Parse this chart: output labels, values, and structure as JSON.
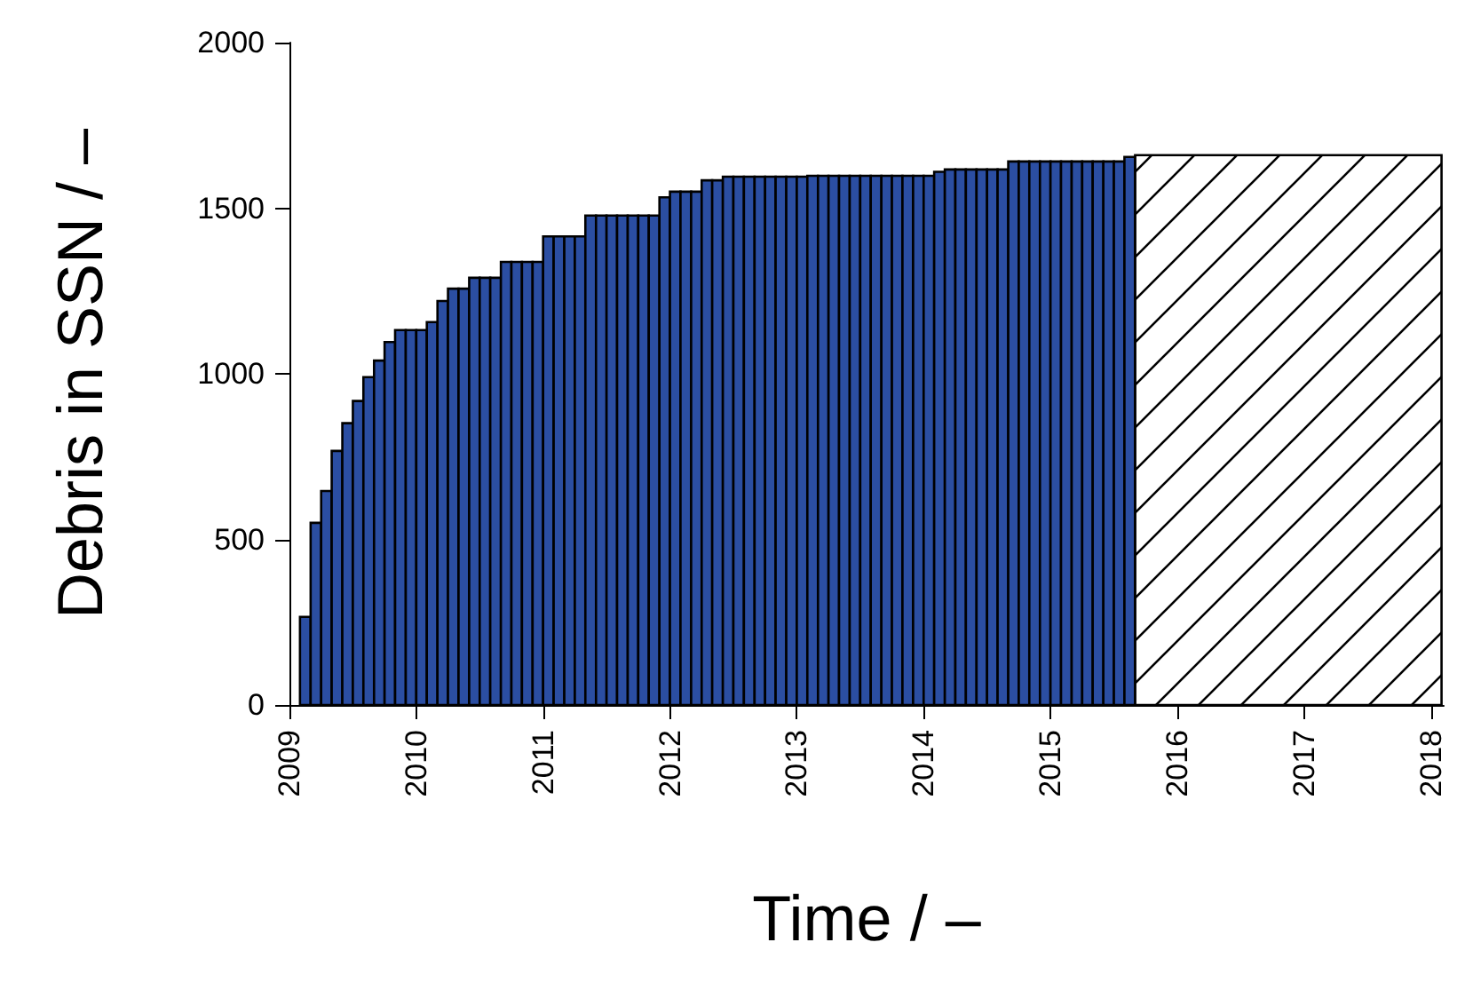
{
  "chart_data": {
    "type": "histogram",
    "xlabel": "Time / –",
    "ylabel": "Debris in SSN / –",
    "xlim": [
      2009,
      2018.1
    ],
    "xticks": [
      2009,
      2010,
      2011,
      2012,
      2013,
      2014,
      2015,
      2016,
      2017,
      2018
    ],
    "ylim": [
      0,
      2000
    ],
    "yticks": [
      0,
      500,
      1000,
      1500,
      2000
    ],
    "bins": [
      2009.083,
      2009.167,
      2009.25,
      2009.333,
      2009.417,
      2009.5,
      2009.583,
      2009.667,
      2009.75,
      2009.833,
      2009.917,
      2010,
      2010.083,
      2010.167,
      2010.25,
      2010.333,
      2010.417,
      2010.5,
      2010.583,
      2010.667,
      2010.75,
      2010.833,
      2010.917,
      2011,
      2011.083,
      2011.167,
      2011.25,
      2011.333,
      2011.417,
      2011.5,
      2011.583,
      2011.667,
      2011.75,
      2011.833,
      2011.917,
      2012,
      2012.083,
      2012.167,
      2012.25,
      2012.333,
      2012.417,
      2012.5,
      2012.583,
      2012.667,
      2012.75,
      2012.833,
      2012.917,
      2013,
      2013.083,
      2013.167,
      2013.25,
      2013.333,
      2013.417,
      2013.5,
      2013.583,
      2013.667,
      2013.75,
      2013.833,
      2013.917,
      2014,
      2014.083,
      2014.167,
      2014.25,
      2014.333,
      2014.417,
      2014.5,
      2014.583,
      2014.667,
      2014.75,
      2014.833,
      2014.917,
      2015,
      2015.083,
      2015.167,
      2015.25,
      2015.333,
      2015.417,
      2015.5,
      2015.583,
      2015.667,
      2018.083
    ],
    "values": [
      266,
      550,
      646,
      767,
      851,
      918,
      990,
      1040,
      1096,
      1132,
      1132,
      1132,
      1156,
      1220,
      1257,
      1257,
      1290,
      1290,
      1290,
      1338,
      1338,
      1338,
      1338,
      1415,
      1415,
      1415,
      1415,
      1478,
      1478,
      1478,
      1478,
      1478,
      1478,
      1478,
      1533,
      1550,
      1550,
      1550,
      1584,
      1584,
      1595,
      1595,
      1595,
      1595,
      1595,
      1595,
      1595,
      1595,
      1598,
      1598,
      1598,
      1598,
      1598,
      1598,
      1598,
      1598,
      1598,
      1598,
      1598,
      1598,
      1610,
      1617,
      1617,
      1617,
      1617,
      1617,
      1617,
      1641,
      1641,
      1641,
      1641,
      1641,
      1641,
      1641,
      1641,
      1641,
      1641,
      1641,
      1655,
      1660
    ],
    "colors": [
      "#2b4ea2",
      "#2b4ea2",
      "#2b4ea2",
      "#2b4ea2",
      "#2b4ea2",
      "#2b4ea2",
      "#2b4ea2",
      "#2b4ea2",
      "#2b4ea2",
      "#2b4ea2",
      "#2b4ea2",
      "#2b4ea2",
      "#2b4ea2",
      "#2b4ea2",
      "#2b4ea2",
      "#2b4ea2",
      "#2b4ea2",
      "#2b4ea2",
      "#2b4ea2",
      "#2b4ea2",
      "#2b4ea2",
      "#2b4ea2",
      "#2b4ea2",
      "#2b4ea2",
      "#2b4ea2",
      "#2b4ea2",
      "#2b4ea2",
      "#2b4ea2",
      "#2b4ea2",
      "#2b4ea2",
      "#2b4ea2",
      "#2b4ea2",
      "#2b4ea2",
      "#2b4ea2",
      "#2b4ea2",
      "#2b4ea2",
      "#2b4ea2",
      "#2b4ea2",
      "#2b4ea2",
      "#2b4ea2",
      "#2b4ea2",
      "#2b4ea2",
      "#2b4ea2",
      "#2b4ea2",
      "#2b4ea2",
      "#2b4ea2",
      "#2b4ea2",
      "#2b4ea2",
      "#2b4ea2",
      "#2b4ea2",
      "#2b4ea2",
      "#2b4ea2",
      "#2b4ea2",
      "#2b4ea2",
      "#2b4ea2",
      "#2b4ea2",
      "#2b4ea2",
      "#2b4ea2",
      "#2b4ea2",
      "#2b4ea2",
      "#2b4ea2",
      "#2b4ea2",
      "#2b4ea2",
      "#2b4ea2",
      "#2b4ea2",
      "#2b4ea2",
      "#2b4ea2",
      "#2b4ea2",
      "#2b4ea2",
      "#2b4ea2",
      "#2b4ea2",
      "#2b4ea2",
      "#2b4ea2",
      "#2b4ea2",
      "#2b4ea2",
      "#2b4ea2",
      "#2b4ea2",
      "#2b4ea2",
      "#2b4ea2",
      "#000000"
    ]
  }
}
